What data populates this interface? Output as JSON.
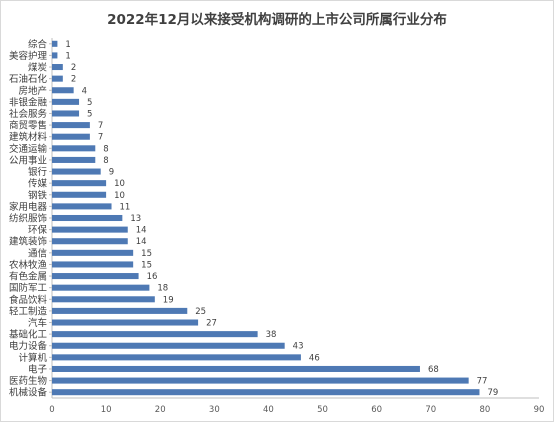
{
  "chart_data": {
    "type": "bar",
    "orientation": "horizontal",
    "title": "2022年12月以来接受机构调研的上市公司所属行业分布",
    "categories": [
      "综合",
      "美容护理",
      "煤炭",
      "石油石化",
      "房地产",
      "非银金融",
      "社会服务",
      "商贸零售",
      "建筑材料",
      "交通运输",
      "公用事业",
      "银行",
      "传媒",
      "钢铁",
      "家用电器",
      "纺织服饰",
      "环保",
      "建筑装饰",
      "通信",
      "农林牧渔",
      "有色金属",
      "国防军工",
      "食品饮料",
      "轻工制造",
      "汽车",
      "基础化工",
      "电力设备",
      "计算机",
      "电子",
      "医药生物",
      "机械设备"
    ],
    "values": [
      1,
      1,
      2,
      2,
      4,
      5,
      5,
      7,
      7,
      8,
      8,
      9,
      10,
      10,
      11,
      13,
      14,
      14,
      15,
      15,
      16,
      18,
      19,
      25,
      27,
      38,
      43,
      46,
      68,
      77,
      79
    ],
    "xlim": [
      0,
      90
    ],
    "xticks": [
      0,
      10,
      20,
      30,
      40,
      50,
      60,
      70,
      80,
      90
    ],
    "bar_color": "#4e79b4",
    "grid": false,
    "xlabel": "",
    "ylabel": ""
  }
}
